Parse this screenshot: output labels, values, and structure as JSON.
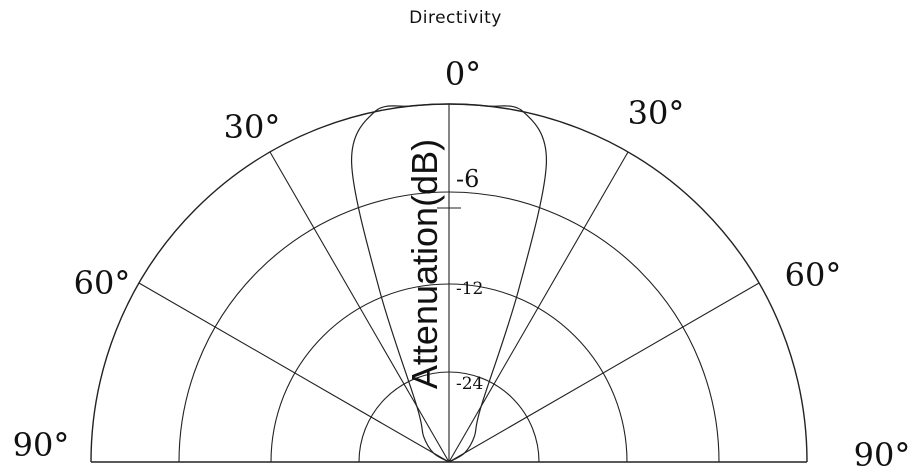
{
  "chart_data": {
    "type": "polar",
    "title": "Directivity",
    "ylabel": "Attenuation(dB)",
    "angle_labels": [
      {
        "text": "0°",
        "angle": 0
      },
      {
        "text": "30°",
        "angle": -30
      },
      {
        "text": "30°",
        "angle": 30
      },
      {
        "text": "60°",
        "angle": -60
      },
      {
        "text": "60°",
        "angle": 60
      },
      {
        "text": "90°",
        "angle": -90
      },
      {
        "text": "90°",
        "angle": 90
      }
    ],
    "ring_labels": [
      "-6",
      "-12",
      "-24"
    ],
    "series": [
      {
        "angles": [
          -90,
          -60,
          -45,
          -30,
          -22,
          -18,
          -12,
          -6,
          0,
          6,
          12,
          18,
          22,
          30,
          45,
          60,
          90
        ],
        "values": [
          1.0,
          0.95,
          0.9,
          0.82,
          0.48,
          0.12,
          0.0,
          0.0,
          0.0,
          0.0,
          0.0,
          0.12,
          0.48,
          0.82,
          0.9,
          0.95,
          1.0
        ]
      }
    ]
  }
}
